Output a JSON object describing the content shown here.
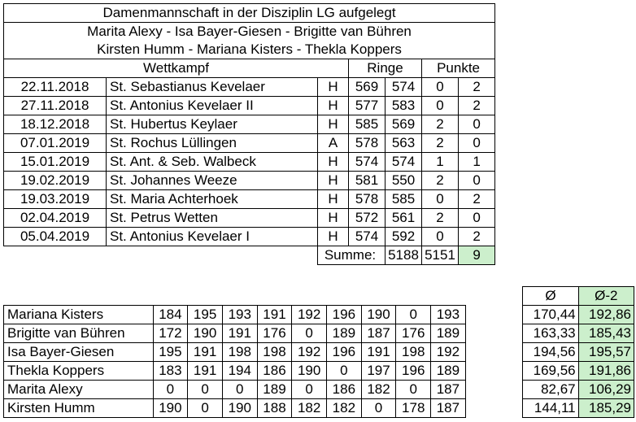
{
  "header": {
    "title": "Damenmannschaft in der Disziplin LG aufgelegt",
    "members_line1": "Marita Alexy - Isa Bayer-Giesen - Brigitte van Bühren",
    "members_line2": "Kirsten Humm - Mariana Kisters - Thekla Koppers"
  },
  "matches": {
    "col_wettkampf": "Wettkampf",
    "col_ringe": "Ringe",
    "col_punkte": "Punkte",
    "rows": [
      {
        "date": "22.11.2018",
        "opponent": "St. Sebastianus Kevelaer",
        "ha": "H",
        "r1": "569",
        "r2": "574",
        "p1": "0",
        "p2": "2"
      },
      {
        "date": "27.11.2018",
        "opponent": "St. Antonius Kevelaer II",
        "ha": "H",
        "r1": "577",
        "r2": "583",
        "p1": "0",
        "p2": "2"
      },
      {
        "date": "18.12.2018",
        "opponent": "St. Hubertus Keylaer",
        "ha": "H",
        "r1": "585",
        "r2": "569",
        "p1": "2",
        "p2": "0"
      },
      {
        "date": "07.01.2019",
        "opponent": "St. Rochus Lüllingen",
        "ha": "A",
        "r1": "578",
        "r2": "563",
        "p1": "2",
        "p2": "0"
      },
      {
        "date": "15.01.2019",
        "opponent": "St. Ant. & Seb. Walbeck",
        "ha": "H",
        "r1": "574",
        "r2": "574",
        "p1": "1",
        "p2": "1"
      },
      {
        "date": "19.02.2019",
        "opponent": "St. Johannes Weeze",
        "ha": "H",
        "r1": "581",
        "r2": "550",
        "p1": "2",
        "p2": "0"
      },
      {
        "date": "19.03.2019",
        "opponent": "St. Maria Achterhoek",
        "ha": "H",
        "r1": "578",
        "r2": "585",
        "p1": "0",
        "p2": "2"
      },
      {
        "date": "02.04.2019",
        "opponent": "St. Petrus Wetten",
        "ha": "H",
        "r1": "572",
        "r2": "561",
        "p1": "2",
        "p2": "0"
      },
      {
        "date": "05.04.2019",
        "opponent": "St. Antonius Kevelaer I",
        "ha": "H",
        "r1": "574",
        "r2": "592",
        "p1": "0",
        "p2": "2"
      }
    ],
    "summe": {
      "label": "Summe:",
      "r1": "5188",
      "r2": "5151",
      "p1": "9",
      "p2": "9"
    }
  },
  "shooters": {
    "col_avg": "Ø",
    "col_avg2": "Ø-2",
    "rows": [
      {
        "name": "Mariana Kisters",
        "scores": [
          "184",
          "195",
          "193",
          "191",
          "192",
          "196",
          "190",
          "0",
          "193"
        ],
        "avg": "170,44",
        "avg2": "192,86"
      },
      {
        "name": "Brigitte van Bühren",
        "scores": [
          "172",
          "190",
          "191",
          "176",
          "0",
          "189",
          "187",
          "176",
          "189"
        ],
        "avg": "163,33",
        "avg2": "185,43"
      },
      {
        "name": "Isa Bayer-Giesen",
        "scores": [
          "195",
          "191",
          "198",
          "198",
          "192",
          "196",
          "191",
          "198",
          "192"
        ],
        "avg": "194,56",
        "avg2": "195,57"
      },
      {
        "name": "Thekla Koppers",
        "scores": [
          "183",
          "191",
          "194",
          "186",
          "190",
          "0",
          "197",
          "196",
          "189"
        ],
        "avg": "169,56",
        "avg2": "191,86"
      },
      {
        "name": "Marita Alexy",
        "scores": [
          "0",
          "0",
          "0",
          "189",
          "0",
          "186",
          "182",
          "0",
          "187"
        ],
        "avg": "82,67",
        "avg2": "106,29"
      },
      {
        "name": "Kirsten Humm",
        "scores": [
          "190",
          "0",
          "190",
          "188",
          "182",
          "182",
          "0",
          "178",
          "187"
        ],
        "avg": "144,11",
        "avg2": "185,29"
      }
    ]
  },
  "colors": {
    "highlight": "#ccefcc"
  }
}
